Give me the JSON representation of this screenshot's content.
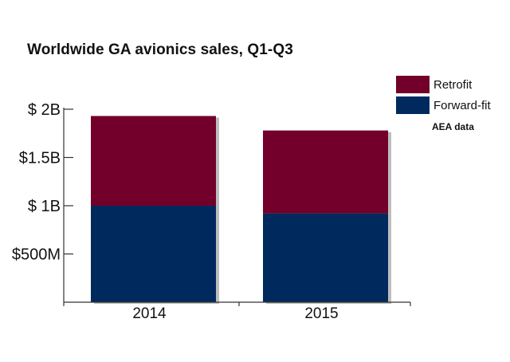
{
  "colors": {
    "retrofit": "#72002a",
    "forward_fit": "#002a5e",
    "axis": "#333333"
  },
  "chart_data": {
    "type": "bar",
    "stacked": true,
    "title": "Worldwide GA avionics sales, Q1-Q3",
    "source_note": "AEA data",
    "categories": [
      "2014",
      "2015"
    ],
    "series": [
      {
        "name": "Forward-fit",
        "values": [
          1.0,
          0.92
        ]
      },
      {
        "name": "Retrofit",
        "values": [
          0.93,
          0.86
        ]
      }
    ],
    "yticks": [
      {
        "value": 0.5,
        "label": "$500M"
      },
      {
        "value": 1.0,
        "label": "$ 1B"
      },
      {
        "value": 1.5,
        "label": "$1.5B"
      },
      {
        "value": 2.0,
        "label": "$ 2B"
      }
    ],
    "ylim": [
      0,
      2.0
    ],
    "xlabel": "",
    "ylabel": "",
    "grid": false,
    "legend_position": "top-right"
  }
}
